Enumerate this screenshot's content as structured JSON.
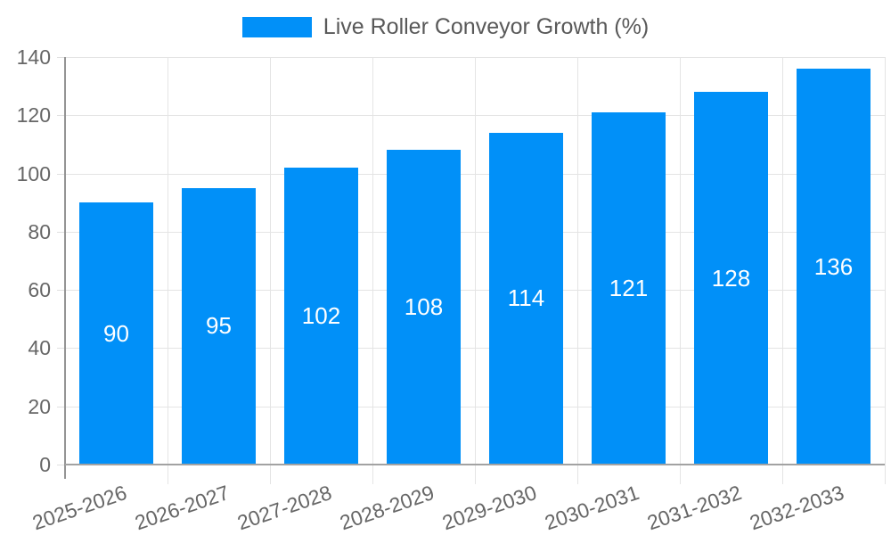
{
  "legend": {
    "label": "Live Roller Conveyor Growth (%)"
  },
  "chart_data": {
    "type": "bar",
    "title": "Live Roller Conveyor Growth (%)",
    "categories": [
      "2025-2026",
      "2026-2027",
      "2027-2028",
      "2028-2029",
      "2029-2030",
      "2030-2031",
      "2031-2032",
      "2032-2033"
    ],
    "values": [
      90,
      95,
      102,
      108,
      114,
      121,
      128,
      136
    ],
    "xlabel": "",
    "ylabel": "",
    "ylim": [
      0,
      140
    ],
    "yticks": [
      0,
      20,
      40,
      60,
      80,
      100,
      120,
      140
    ],
    "grid": true,
    "legend_position": "top-center",
    "value_label_position": "inside-center",
    "x_tick_rotation_deg": -19,
    "colors": {
      "bar": "#0190f8",
      "bar_value_label": "#ffffff",
      "grid_line": "#e4e4e4",
      "axis_line": "#999999",
      "tick_text": "#666666",
      "legend_text": "#595959",
      "background": "#ffffff"
    }
  }
}
